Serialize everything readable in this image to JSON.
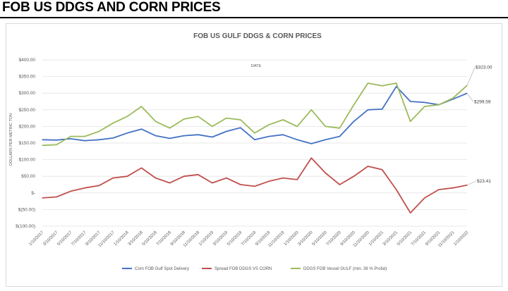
{
  "header": {
    "title": "FOB US DDGS AND CORN PRICES"
  },
  "chart_data": {
    "type": "line",
    "title": "FOB US GULF DDGS & CORN PRICES",
    "xlabel": "DATE",
    "ylabel": "DOLLARS PER METRIC TON",
    "ylim": [
      -100,
      400
    ],
    "yticks": [
      {
        "value": 400,
        "label": "$400.00"
      },
      {
        "value": 350,
        "label": "$350.00"
      },
      {
        "value": 300,
        "label": "$300.00"
      },
      {
        "value": 250,
        "label": "$250.00"
      },
      {
        "value": 200,
        "label": "$200.00"
      },
      {
        "value": 150,
        "label": "$150.00"
      },
      {
        "value": 100,
        "label": "$100.00"
      },
      {
        "value": 50,
        "label": "$50.00"
      },
      {
        "value": 0,
        "label": "$-"
      },
      {
        "value": -50,
        "label": "$(50.00)"
      },
      {
        "value": -100,
        "label": "$(100.00)"
      }
    ],
    "grid": true,
    "legend": "bottom",
    "xticks": [
      "1/10/2017",
      "3/10/2017",
      "5/10/2017",
      "7/10/2017",
      "9/10/2017",
      "11/10/2017",
      "1/10/2018",
      "3/10/2018",
      "5/10/2018",
      "7/10/2018",
      "9/10/2018",
      "11/10/2018",
      "1/10/2019",
      "3/10/2019",
      "5/10/2019",
      "7/10/2019",
      "9/10/2019",
      "11/10/2019",
      "1/10/2020",
      "3/10/2020",
      "5/10/2020",
      "7/10/2020",
      "9/10/2020",
      "11/10/2020",
      "1/10/2021",
      "3/10/2021",
      "5/10/2021",
      "7/10/2021",
      "9/10/2021",
      "11/10/2021",
      "1/10/2022"
    ],
    "x": [
      0,
      1,
      2,
      3,
      4,
      5,
      6,
      7,
      8,
      9,
      10,
      11,
      12,
      13,
      14,
      15,
      16,
      17,
      18,
      19,
      20,
      21,
      22,
      23,
      24,
      25,
      26,
      27,
      28,
      29,
      30
    ],
    "series": [
      {
        "name": "Corn FOB Gulf Spot Delivery",
        "color": "#4472c4",
        "values": [
          160,
          159,
          163,
          157,
          160,
          165,
          180,
          192,
          172,
          164,
          172,
          175,
          168,
          185,
          196,
          160,
          170,
          175,
          160,
          148,
          160,
          170,
          215,
          250,
          252,
          320,
          275,
          272,
          265,
          282,
          299.59
        ]
      },
      {
        "name": "Spread FOB DDGS VS CORN",
        "color": "#c0504d",
        "values": [
          -15,
          -12,
          5,
          15,
          22,
          45,
          50,
          75,
          45,
          30,
          50,
          55,
          30,
          45,
          25,
          20,
          35,
          45,
          40,
          105,
          60,
          25,
          50,
          80,
          70,
          10,
          -60,
          -15,
          10,
          15,
          23.41
        ]
      },
      {
        "name": "DDGS FOB Vessel GULF  (min. 36 % Profat)",
        "color": "#9bbb59",
        "values": [
          143,
          145,
          170,
          170,
          185,
          210,
          230,
          260,
          215,
          195,
          222,
          230,
          200,
          225,
          220,
          180,
          205,
          220,
          200,
          250,
          200,
          195,
          265,
          330,
          322,
          330,
          215,
          260,
          265,
          285,
          323.0
        ]
      }
    ],
    "annotations": [
      {
        "series": 2,
        "label": "$323.00"
      },
      {
        "series": 0,
        "label": "$299.59"
      },
      {
        "series": 1,
        "label": "$23.41"
      }
    ]
  }
}
